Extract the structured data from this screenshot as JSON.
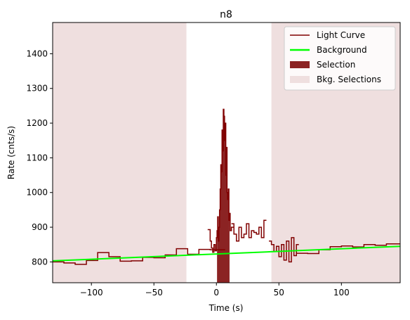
{
  "chart_data": {
    "type": "line",
    "title": "n8",
    "xlabel": "Time (s)",
    "ylabel": "Rate (cnts/s)",
    "xlim": [
      -131,
      147
    ],
    "ylim": [
      740,
      1490
    ],
    "xticks": [
      -100,
      -50,
      0,
      50,
      100
    ],
    "xtick_labels": [
      "−100",
      "−50",
      "0",
      "50",
      "100"
    ],
    "yticks": [
      800,
      900,
      1000,
      1100,
      1200,
      1300,
      1400
    ],
    "ytick_labels": [
      "800",
      "900",
      "1000",
      "1100",
      "1200",
      "1300",
      "1400"
    ],
    "grid": false,
    "legend_position": "top-right",
    "legend": [
      {
        "label": "Light Curve",
        "kind": "line",
        "color": "#800000"
      },
      {
        "label": "Background",
        "kind": "line",
        "color": "#00ff00"
      },
      {
        "label": "Selection",
        "kind": "patch",
        "color": "#8b2323"
      },
      {
        "label": "Bkg. Selections",
        "kind": "patch",
        "color": "#efdfdf"
      }
    ],
    "colors": {
      "light_curve": "#800000",
      "background": "#00ff00",
      "selection": "#8b2323",
      "bkg_selection": "#efdfdf"
    },
    "background_fit": {
      "x": [
        -131,
        147
      ],
      "y": [
        803,
        845
      ]
    },
    "selection_interval": [
      0.5,
      10.5
    ],
    "bkg_selection_intervals": [
      [
        -131,
        -24
      ],
      [
        44,
        147
      ]
    ],
    "light_curve_segments": [
      {
        "x": [
          -131,
          -122,
          -113,
          -104,
          -95,
          -86,
          -77,
          -68,
          -59,
          -50,
          -41,
          -32,
          -23,
          -14,
          -5,
          -2
        ],
        "y": [
          800,
          797,
          793,
          804,
          827,
          815,
          802,
          803,
          813,
          812,
          820,
          838,
          822,
          836,
          835,
          835
        ]
      },
      {
        "x": [
          -7,
          -5,
          -4,
          -3,
          -2,
          -1,
          0,
          0.5,
          1,
          1.5,
          2,
          2.5,
          3,
          3.5,
          4,
          4.5,
          5,
          5.5,
          6,
          6.5,
          7,
          7.5,
          8,
          8.5,
          9,
          9.5,
          10,
          10.5,
          11,
          12
        ],
        "y": [
          893,
          860,
          840,
          828,
          850,
          832,
          870,
          890,
          930,
          860,
          900,
          950,
          1010,
          1080,
          1060,
          1180,
          1120,
          1240,
          1220,
          1150,
          1200,
          1050,
          1130,
          1000,
          980,
          1010,
          920,
          940,
          890,
          900
        ]
      },
      {
        "x": [
          12,
          14,
          16,
          18,
          20,
          22,
          24,
          26,
          28,
          30,
          32,
          34,
          36,
          38
        ],
        "y": [
          910,
          880,
          860,
          900,
          870,
          880,
          910,
          870,
          890,
          885,
          880,
          900,
          870,
          920
        ]
      },
      {
        "x": [
          42,
          44,
          46,
          48,
          50,
          52,
          54,
          56,
          58,
          60,
          62,
          64
        ],
        "y": [
          860,
          850,
          830,
          845,
          815,
          850,
          805,
          860,
          800,
          870,
          818,
          850
        ]
      },
      {
        "x": [
          64,
          73,
          82,
          91,
          100,
          109,
          118,
          127,
          136,
          147
        ],
        "y": [
          825,
          824,
          835,
          844,
          846,
          843,
          850,
          848,
          852,
          852
        ]
      }
    ]
  }
}
